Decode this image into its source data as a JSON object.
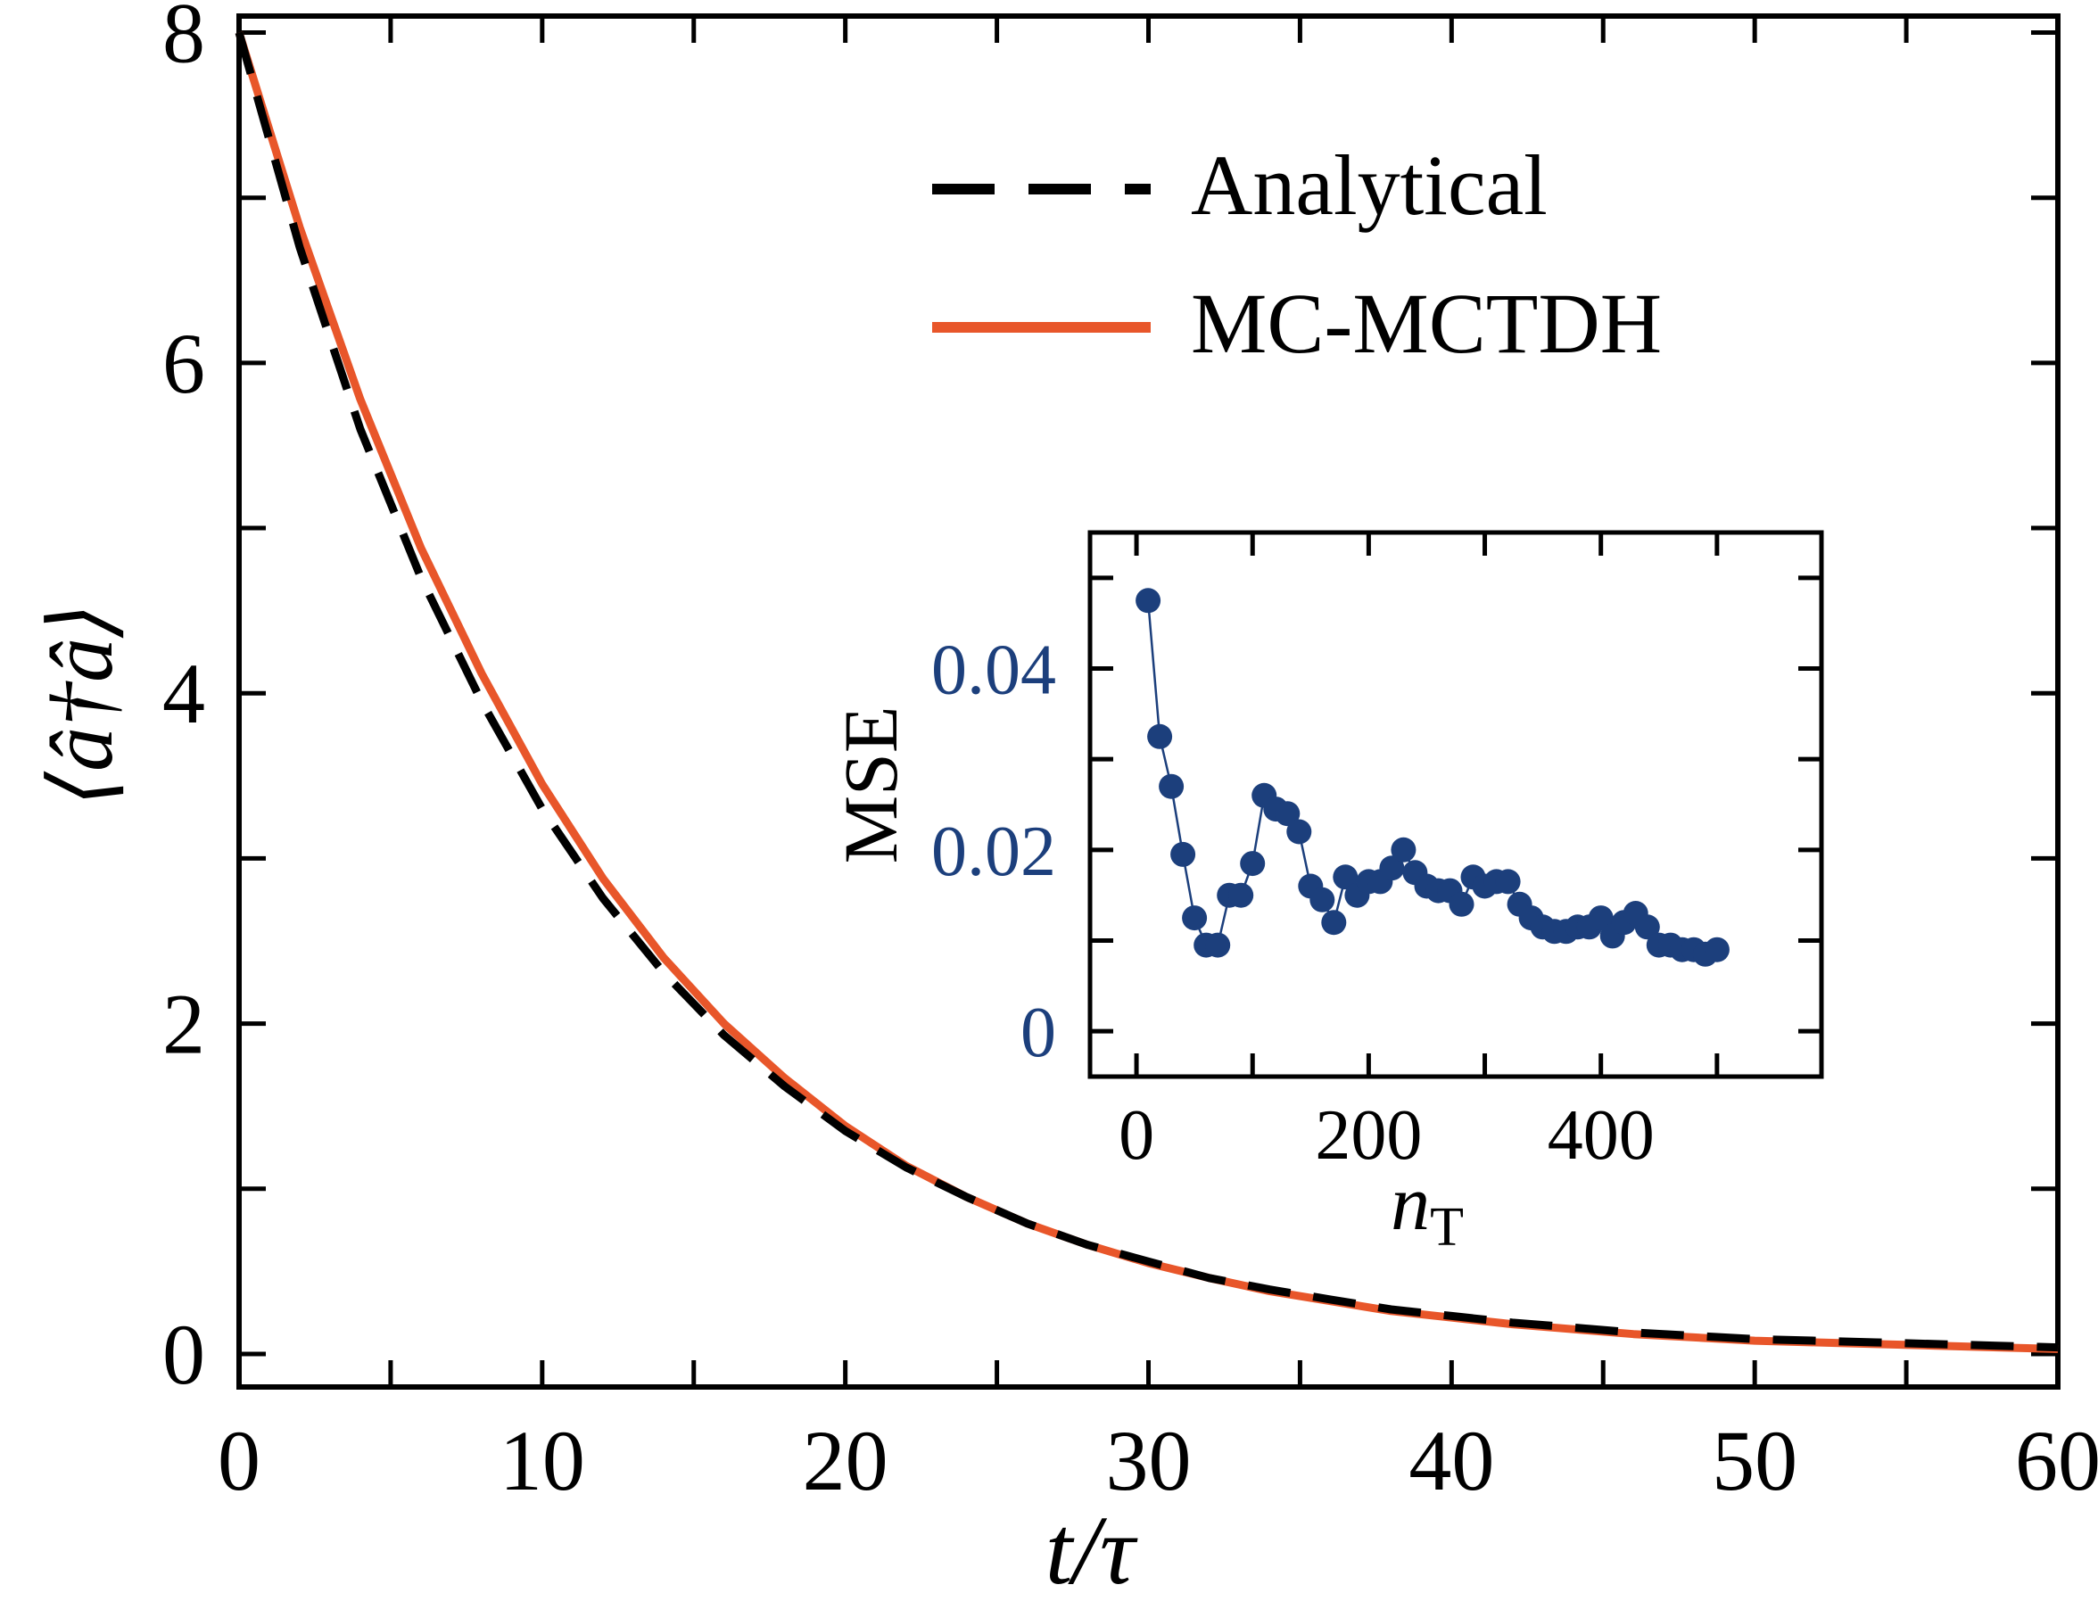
{
  "chart_data": [
    {
      "type": "line",
      "xlabel": "t/τ",
      "ylabel": "⟨â†â⟩",
      "xlim": [
        0,
        60
      ],
      "ylim": [
        -0.2,
        8.1
      ],
      "x_ticks": [
        0,
        10,
        20,
        30,
        40,
        50,
        60
      ],
      "y_ticks": [
        0,
        2,
        4,
        6,
        8
      ],
      "y_minor_ticks": [
        1,
        3,
        5,
        7
      ],
      "x_minor_ticks": [
        5,
        15,
        25,
        35,
        45,
        55
      ],
      "grid": false,
      "legend_placement": "top-right",
      "series": [
        {
          "name": "Analytical",
          "color": "#000000",
          "dash": "dashed",
          "x": [
            0,
            2,
            4,
            6,
            8,
            10,
            12,
            14,
            16,
            18,
            20,
            22,
            24,
            26,
            28,
            30,
            32,
            34,
            36,
            38,
            40,
            42,
            44,
            46,
            48,
            50,
            52,
            54,
            56,
            58,
            60
          ],
          "y": [
            8.0,
            6.7,
            5.6,
            4.7,
            3.95,
            3.3,
            2.76,
            2.31,
            1.93,
            1.62,
            1.35,
            1.13,
            0.95,
            0.79,
            0.66,
            0.56,
            0.46,
            0.39,
            0.33,
            0.27,
            0.23,
            0.19,
            0.16,
            0.13,
            0.11,
            0.09,
            0.08,
            0.07,
            0.06,
            0.05,
            0.04
          ]
        },
        {
          "name": "MC-MCTDH",
          "color": "#e8562a",
          "dash": "solid",
          "x": [
            0,
            2,
            4,
            6,
            8,
            10,
            12,
            14,
            16,
            18,
            20,
            22,
            24,
            26,
            28,
            30,
            32,
            34,
            36,
            38,
            40,
            42,
            44,
            46,
            48,
            50,
            52,
            54,
            56,
            58,
            60
          ],
          "y": [
            8.0,
            6.82,
            5.78,
            4.88,
            4.12,
            3.45,
            2.88,
            2.4,
            2.0,
            1.67,
            1.38,
            1.14,
            0.95,
            0.79,
            0.66,
            0.55,
            0.46,
            0.38,
            0.32,
            0.26,
            0.22,
            0.18,
            0.15,
            0.12,
            0.1,
            0.08,
            0.07,
            0.06,
            0.05,
            0.04,
            0.03
          ]
        }
      ]
    },
    {
      "type": "scatter",
      "xlabel": "n",
      "xlabel_subscript": "T",
      "ylabel": "MSE",
      "xlim": [
        -40,
        590
      ],
      "ylim": [
        -0.005,
        0.055
      ],
      "x_ticks": [
        0,
        200,
        400
      ],
      "y_ticks": [
        0,
        0.02,
        0.04
      ],
      "x_tick_labels": [
        "0",
        "200",
        "400"
      ],
      "y_tick_labels": [
        "0",
        "0.02",
        "0.04"
      ],
      "x_minor_ticks": [
        100,
        300,
        500
      ],
      "y_minor_ticks": [
        0.01,
        0.03,
        0.05
      ],
      "grid": false,
      "color": "#1c3f7c",
      "series": [
        {
          "x": [
            10,
            20,
            30,
            40,
            50,
            60,
            70,
            80,
            90,
            100,
            110,
            120,
            130,
            140,
            150,
            160,
            170,
            180,
            190,
            200,
            210,
            220,
            230,
            240,
            250,
            260,
            270,
            280,
            290,
            300,
            310,
            320,
            330,
            340,
            350,
            360,
            370,
            380,
            390,
            400,
            410,
            420,
            430,
            440,
            450,
            460,
            470,
            480,
            490,
            500
          ],
          "y": [
            0.0475,
            0.0325,
            0.027,
            0.0195,
            0.0125,
            0.0095,
            0.0095,
            0.015,
            0.015,
            0.0185,
            0.026,
            0.0245,
            0.024,
            0.022,
            0.016,
            0.0145,
            0.012,
            0.017,
            0.015,
            0.0165,
            0.0165,
            0.018,
            0.02,
            0.0175,
            0.016,
            0.0155,
            0.0155,
            0.014,
            0.017,
            0.016,
            0.0165,
            0.0165,
            0.014,
            0.0125,
            0.0115,
            0.011,
            0.011,
            0.0115,
            0.0115,
            0.0125,
            0.0105,
            0.012,
            0.013,
            0.0115,
            0.0095,
            0.0095,
            0.009,
            0.009,
            0.0085,
            0.009
          ]
        }
      ]
    }
  ]
}
